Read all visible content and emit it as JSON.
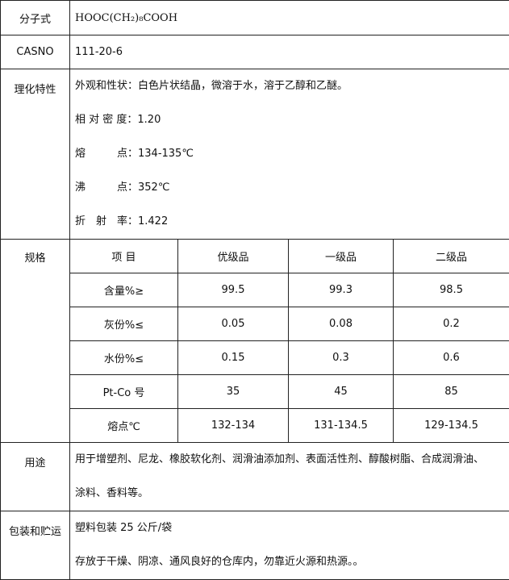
{
  "rows": {
    "formula": {
      "label": "分子式",
      "value": "HOOC(CH₂)₈COOH"
    },
    "cas": {
      "label": "CASNO",
      "value": "111-20-6"
    },
    "properties": {
      "label": "理化特性",
      "lines": [
        "外观和性状：白色片状结晶，微溶于水，溶于乙醇和乙醚。",
        "相 对 密 度：1.20",
        "熔　　　点：134-135℃",
        "沸　　　点：352℃",
        "折　射　率：1.422"
      ]
    },
    "spec": {
      "label": "规格",
      "headers": [
        "项 目",
        "优级品",
        "一级品",
        "二级品"
      ],
      "rows": [
        [
          "含量%≥",
          "99.5",
          "99.3",
          "98.5"
        ],
        [
          "灰份%≤",
          "0.05",
          "0.08",
          "0.2"
        ],
        [
          "水份%≤",
          "0.15",
          "0.3",
          "0.6"
        ],
        [
          "Pt-Co 号",
          "35",
          "45",
          "85"
        ],
        [
          "熔点℃",
          "132-134",
          "131-134.5",
          "129-134.5"
        ]
      ]
    },
    "usage": {
      "label": "用途",
      "lines": [
        "用于增塑剂、尼龙、橡胶软化剂、润滑油添加剂、表面活性剂、醇酸树脂、合成润滑油、",
        "涂料、香料等。"
      ]
    },
    "packaging": {
      "label": "包装和贮运",
      "lines": [
        "塑料包装 25 公斤/袋",
        "存放于干燥、阴凉、通风良好的仓库内，勿靠近火源和热源。。"
      ]
    }
  }
}
